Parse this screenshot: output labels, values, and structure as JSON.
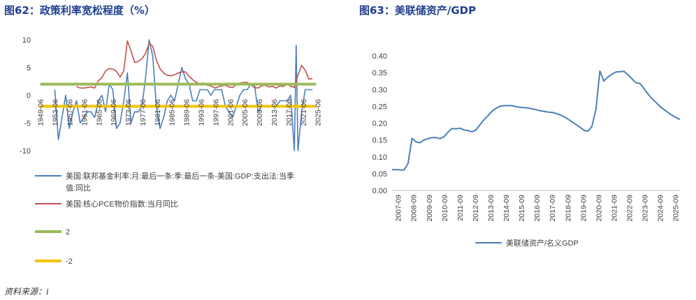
{
  "left_title": "图62：政策利率宽松程度（%）",
  "right_title": "图63：美联储资产/GDP",
  "source": "资料来源：i",
  "chart_data": [
    {
      "type": "line",
      "title": "",
      "xlabel": "",
      "ylabel": "",
      "ylim": [
        -10,
        10
      ],
      "yticks": [
        10,
        5,
        0,
        -5,
        -10
      ],
      "grid": false,
      "legend_position": "bottom",
      "x_ticks": [
        "1949-06",
        "1953-06",
        "1957-06",
        "1961-06",
        "1965-06",
        "1969-06",
        "1973-06",
        "1977-06",
        "1981-06",
        "1985-06",
        "1989-06",
        "1993-06",
        "1997-06",
        "2001-06",
        "2005-06",
        "2009-06",
        "2013-06",
        "2017-06",
        "2021-06",
        "2025-06"
      ],
      "series": [
        {
          "name": "美国:联邦基金利率:月:最后一条:季:最后一条-美国:GDP:支出法:当季值:同比",
          "color": "#4a7ebb",
          "x": [
            1954,
            1955,
            1956,
            1957,
            1958,
            1959,
            1960,
            1961,
            1962,
            1963,
            1964,
            1965,
            1966,
            1967,
            1968,
            1969,
            1970,
            1971,
            1972,
            1973,
            1974,
            1975,
            1976,
            1977,
            1978,
            1979,
            1980,
            1981,
            1982,
            1983,
            1984,
            1985,
            1986,
            1987,
            1988,
            1989,
            1990,
            1991,
            1992,
            1993,
            1994,
            1995,
            1996,
            1997,
            1998,
            1999,
            2000,
            2001,
            2002,
            2003,
            2004,
            2005,
            2006,
            2007,
            2008,
            2009,
            2010,
            2011,
            2012,
            2013,
            2014,
            2015,
            2016,
            2017,
            2018,
            2019,
            2020,
            2020.5,
            2021,
            2022,
            2023,
            2024,
            2025
          ],
          "y": [
            1,
            -8,
            -4,
            0,
            -6,
            -3,
            -1,
            -5,
            -4,
            -3,
            -3,
            -4,
            -1,
            0,
            -3,
            2,
            1,
            -6,
            -5,
            -1,
            4,
            -5,
            -3,
            -3,
            -2,
            3,
            12,
            7,
            -2,
            -6,
            -4,
            -1,
            0,
            -1,
            2,
            5,
            3,
            2,
            -1,
            -1,
            1,
            1,
            1,
            0,
            1,
            1,
            1,
            -2,
            -3,
            -4,
            -2,
            0,
            1,
            1,
            2,
            2,
            -3,
            -2,
            -2,
            -2,
            -2,
            -2,
            -1,
            -1,
            -1,
            0,
            -10,
            9,
            -10,
            -3,
            1,
            1,
            1
          ]
        },
        {
          "name": "美国:核心PCE物价指数:当月同比",
          "color": "#c0504d",
          "x": [
            1960,
            1961,
            1962,
            1963,
            1964,
            1965,
            1966,
            1967,
            1968,
            1969,
            1970,
            1971,
            1972,
            1973,
            1974,
            1975,
            1976,
            1977,
            1978,
            1979,
            1980,
            1981,
            1982,
            1983,
            1984,
            1985,
            1986,
            1987,
            1988,
            1989,
            1990,
            1991,
            1992,
            1993,
            1994,
            1995,
            1996,
            1997,
            1998,
            1999,
            2000,
            2001,
            2002,
            2003,
            2004,
            2005,
            2006,
            2007,
            2008,
            2009,
            2010,
            2011,
            2012,
            2013,
            2014,
            2015,
            2016,
            2017,
            2018,
            2019,
            2020,
            2021,
            2022,
            2023,
            2024,
            2025
          ],
          "y": [
            1.6,
            1.3,
            1.3,
            1.4,
            1.5,
            1.3,
            2.6,
            3.2,
            4.4,
            4.8,
            4.7,
            4.3,
            3.3,
            4.4,
            9.8,
            8.0,
            5.9,
            6.1,
            6.6,
            7.5,
            9.4,
            8.8,
            6.3,
            4.8,
            4.0,
            3.6,
            3.5,
            3.7,
            4.0,
            4.2,
            4.2,
            3.4,
            2.8,
            2.3,
            2.1,
            2.2,
            1.8,
            1.7,
            1.3,
            1.5,
            1.7,
            1.8,
            1.5,
            1.4,
            1.9,
            2.2,
            2.3,
            2.3,
            1.9,
            1.4,
            1.3,
            1.7,
            1.8,
            1.5,
            1.6,
            1.3,
            1.7,
            1.6,
            2.0,
            1.6,
            1.4,
            3.6,
            5.4,
            4.5,
            2.9,
            3.0
          ]
        },
        {
          "name": "2",
          "color": "#9bbb59",
          "x": [
            1950,
            2026
          ],
          "y": [
            2,
            2
          ]
        },
        {
          "name": "-2",
          "color": "#f5c400",
          "x": [
            1950,
            2026
          ],
          "y": [
            -2,
            -2
          ]
        }
      ]
    },
    {
      "type": "line",
      "title": "",
      "xlabel": "",
      "ylabel": "",
      "ylim": [
        0,
        0.4
      ],
      "yticks": [
        "0.00",
        "0.05",
        "0.10",
        "0.15",
        "0.20",
        "0.25",
        "0.30",
        "0.35",
        "0.40"
      ],
      "grid": false,
      "legend_position": "bottom",
      "x_ticks": [
        "2007-09",
        "2008-09",
        "2009-09",
        "2010-09",
        "2011-09",
        "2012-09",
        "2013-09",
        "2014-09",
        "2015-09",
        "2016-09",
        "2017-09",
        "2018-09",
        "2019-09",
        "2020-09",
        "2021-09",
        "2022-09",
        "2023-09",
        "2024-09",
        "2025-09"
      ],
      "series": [
        {
          "name": "美联储资产/名义GDP",
          "color": "#4a7ebb",
          "x": [
            2007.7,
            2007.95,
            2008.2,
            2008.45,
            2008.7,
            2008.95,
            2009.2,
            2009.45,
            2009.7,
            2009.95,
            2010.2,
            2010.45,
            2010.7,
            2010.95,
            2011.2,
            2011.45,
            2011.7,
            2011.95,
            2012.2,
            2012.45,
            2012.7,
            2012.95,
            2013.2,
            2013.45,
            2013.7,
            2013.95,
            2014.2,
            2014.45,
            2014.7,
            2014.95,
            2015.2,
            2015.45,
            2015.7,
            2015.95,
            2016.2,
            2016.45,
            2016.7,
            2016.95,
            2017.2,
            2017.45,
            2017.7,
            2017.95,
            2018.2,
            2018.45,
            2018.7,
            2018.95,
            2019.2,
            2019.45,
            2019.7,
            2019.95,
            2020.2,
            2020.45,
            2020.7,
            2020.95,
            2021.2,
            2021.45,
            2021.7,
            2021.95,
            2022.2,
            2022.45,
            2022.7,
            2022.95,
            2023.2,
            2023.45,
            2023.7,
            2023.95,
            2024.2,
            2024.45,
            2024.7,
            2024.95,
            2025.2,
            2025.45,
            2025.7
          ],
          "y": [
            0.062,
            0.062,
            0.061,
            0.061,
            0.08,
            0.155,
            0.144,
            0.142,
            0.15,
            0.154,
            0.157,
            0.157,
            0.154,
            0.16,
            0.173,
            0.184,
            0.183,
            0.185,
            0.18,
            0.178,
            0.174,
            0.18,
            0.195,
            0.21,
            0.222,
            0.235,
            0.244,
            0.25,
            0.252,
            0.252,
            0.252,
            0.249,
            0.247,
            0.246,
            0.245,
            0.243,
            0.24,
            0.237,
            0.235,
            0.233,
            0.232,
            0.229,
            0.225,
            0.219,
            0.212,
            0.204,
            0.196,
            0.188,
            0.179,
            0.176,
            0.19,
            0.24,
            0.355,
            0.325,
            0.337,
            0.345,
            0.352,
            0.353,
            0.354,
            0.344,
            0.332,
            0.32,
            0.318,
            0.303,
            0.287,
            0.273,
            0.262,
            0.25,
            0.241,
            0.232,
            0.224,
            0.217,
            0.211
          ]
        }
      ]
    }
  ]
}
